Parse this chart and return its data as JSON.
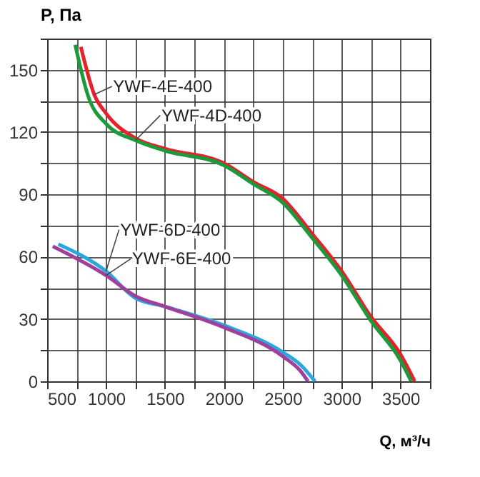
{
  "chart_data": {
    "type": "line",
    "xlabel": "Q, м³/ч",
    "ylabel": "P, Па",
    "xlim": [
      500,
      3750
    ],
    "ylim": [
      0,
      165
    ],
    "xticks": [
      500,
      {
        "value": 750,
        "label": null
      },
      1000,
      {
        "value": 1250,
        "label": null
      },
      1500,
      {
        "value": 1750,
        "label": null
      },
      2000,
      {
        "value": 2250,
        "label": null
      },
      2500,
      {
        "value": 2750,
        "label": null
      },
      3000,
      {
        "value": 3250,
        "label": null
      },
      3500,
      {
        "value": 3750,
        "label": null
      }
    ],
    "yticks": [
      0,
      {
        "value": 15,
        "label": null
      },
      30,
      {
        "value": 45,
        "label": null
      },
      60,
      {
        "value": 75,
        "label": null
      },
      90,
      {
        "value": 105,
        "label": null
      },
      120,
      {
        "value": 135,
        "label": null
      },
      150,
      {
        "value": 165,
        "label": null
      }
    ],
    "grid": true,
    "legend": false,
    "marker": "none",
    "line_style": "solid",
    "series": [
      {
        "name": "YWF-4E-400",
        "color": "#e8202a",
        "x": [
          786,
          900,
          1000,
          1250,
          1500,
          2000,
          2250,
          2500,
          2750,
          3000,
          3250,
          3500,
          3620
        ],
        "values": [
          161,
          138,
          129,
          117,
          112,
          105,
          96,
          88,
          71,
          53,
          31,
          13,
          0
        ]
      },
      {
        "name": "YWF-4D-400",
        "color": "#1a9a3a",
        "x": [
          738,
          850,
          1000,
          1250,
          1500,
          2000,
          2250,
          2500,
          2750,
          3000,
          3250,
          3500,
          3590
        ],
        "values": [
          162,
          137,
          124,
          116,
          111,
          104,
          95,
          86,
          69,
          51,
          29,
          10,
          0
        ]
      },
      {
        "name": "YWF-6D-400",
        "color": "#29a8e0",
        "x": [
          595,
          1000,
          1250,
          1500,
          2000,
          2500,
          2650,
          2774
        ],
        "values": [
          66,
          53,
          40,
          36,
          27,
          14,
          8,
          0
        ]
      },
      {
        "name": "YWF-6E-400",
        "color": "#a0409a",
        "x": [
          548,
          1000,
          1250,
          1500,
          2000,
          2500,
          2650,
          2714
        ],
        "values": [
          65,
          51,
          41,
          36,
          26,
          12,
          5,
          0
        ]
      }
    ]
  }
}
